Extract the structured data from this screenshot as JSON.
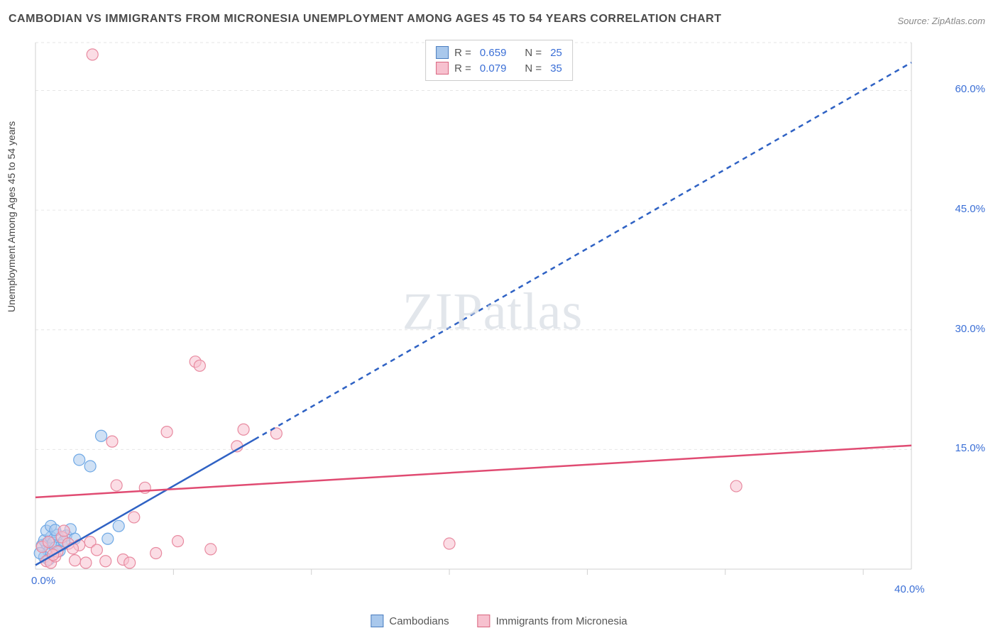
{
  "title": "CAMBODIAN VS IMMIGRANTS FROM MICRONESIA UNEMPLOYMENT AMONG AGES 45 TO 54 YEARS CORRELATION CHART",
  "source": "Source: ZipAtlas.com",
  "ylabel": "Unemployment Among Ages 45 to 54 years",
  "watermark": "ZIPatlas",
  "chart": {
    "type": "scatter",
    "background_color": "#ffffff",
    "grid_color": "#e6e6e6",
    "axis_color": "#d0d0d0",
    "xlim": [
      0,
      40
    ],
    "ylim": [
      0,
      66
    ],
    "ytick_labels": [
      15.0,
      30.0,
      45.0,
      60.0
    ],
    "xtick_labels": [
      0.0,
      40.0
    ],
    "xtick_minor": [
      6.3,
      12.6,
      18.9,
      25.2,
      31.5,
      37.8
    ],
    "series": [
      {
        "name": "Cambodians",
        "marker_color": "#6ea8e5",
        "marker_fill": "#a9c8ec",
        "marker_fill_opacity": 0.55,
        "marker_radius": 8,
        "line_color": "#2f62c4",
        "line_width": 2.5,
        "dash_extrapolate": true,
        "R": 0.659,
        "N": 25,
        "trend": {
          "x1": 0,
          "y1": 0.5,
          "x2": 40,
          "y2": 63.5,
          "solid_until_x": 10
        },
        "points": [
          [
            0.3,
            3.0
          ],
          [
            0.5,
            3.2
          ],
          [
            0.6,
            2.2
          ],
          [
            0.4,
            3.6
          ],
          [
            0.7,
            4.0
          ],
          [
            0.8,
            3.3
          ],
          [
            0.9,
            2.7
          ],
          [
            1.0,
            4.3
          ],
          [
            1.2,
            3.0
          ],
          [
            0.5,
            4.8
          ],
          [
            0.7,
            5.4
          ],
          [
            1.4,
            4.2
          ],
          [
            1.6,
            5.0
          ],
          [
            1.8,
            3.8
          ],
          [
            2.0,
            13.7
          ],
          [
            2.5,
            12.9
          ],
          [
            3.3,
            3.8
          ],
          [
            3.8,
            5.4
          ],
          [
            3.0,
            16.7
          ],
          [
            0.4,
            1.5
          ],
          [
            0.2,
            2.0
          ],
          [
            0.6,
            1.2
          ],
          [
            0.9,
            4.9
          ],
          [
            1.1,
            2.3
          ],
          [
            1.3,
            3.5
          ]
        ]
      },
      {
        "name": "Immigrants from Micronesia",
        "marker_color": "#e88aa0",
        "marker_fill": "#f7c1cf",
        "marker_fill_opacity": 0.55,
        "marker_radius": 8,
        "line_color": "#e04b72",
        "line_width": 2.5,
        "dash_extrapolate": false,
        "R": 0.079,
        "N": 35,
        "trend": {
          "x1": 0,
          "y1": 9.0,
          "x2": 40,
          "y2": 15.5,
          "solid_until_x": 40
        },
        "points": [
          [
            0.3,
            2.8
          ],
          [
            0.5,
            1.0
          ],
          [
            0.7,
            0.8
          ],
          [
            0.9,
            1.6
          ],
          [
            1.2,
            4.0
          ],
          [
            1.5,
            3.2
          ],
          [
            1.8,
            1.1
          ],
          [
            2.0,
            3.0
          ],
          [
            2.3,
            0.8
          ],
          [
            2.5,
            3.4
          ],
          [
            2.8,
            2.4
          ],
          [
            3.2,
            1.0
          ],
          [
            3.5,
            16.0
          ],
          [
            3.7,
            10.5
          ],
          [
            4.0,
            1.2
          ],
          [
            4.3,
            0.8
          ],
          [
            4.5,
            6.5
          ],
          [
            5.0,
            10.2
          ],
          [
            5.5,
            2.0
          ],
          [
            6.0,
            17.2
          ],
          [
            6.5,
            3.5
          ],
          [
            7.3,
            26.0
          ],
          [
            7.5,
            25.5
          ],
          [
            8.0,
            2.5
          ],
          [
            9.2,
            15.4
          ],
          [
            9.5,
            17.5
          ],
          [
            11.0,
            17.0
          ],
          [
            18.9,
            3.2
          ],
          [
            32.0,
            10.4
          ],
          [
            2.6,
            64.5
          ],
          [
            1.0,
            2.2
          ],
          [
            1.3,
            4.8
          ],
          [
            1.7,
            2.6
          ],
          [
            0.6,
            3.4
          ],
          [
            0.8,
            1.8
          ]
        ]
      }
    ]
  },
  "legend_bottom": {
    "items": [
      "Cambodians",
      "Immigrants from Micronesia"
    ]
  },
  "legend_top": {
    "rows": [
      {
        "swatch": "blue",
        "R": "0.659",
        "N": "25"
      },
      {
        "swatch": "pink",
        "R": "0.079",
        "N": "35"
      }
    ]
  }
}
